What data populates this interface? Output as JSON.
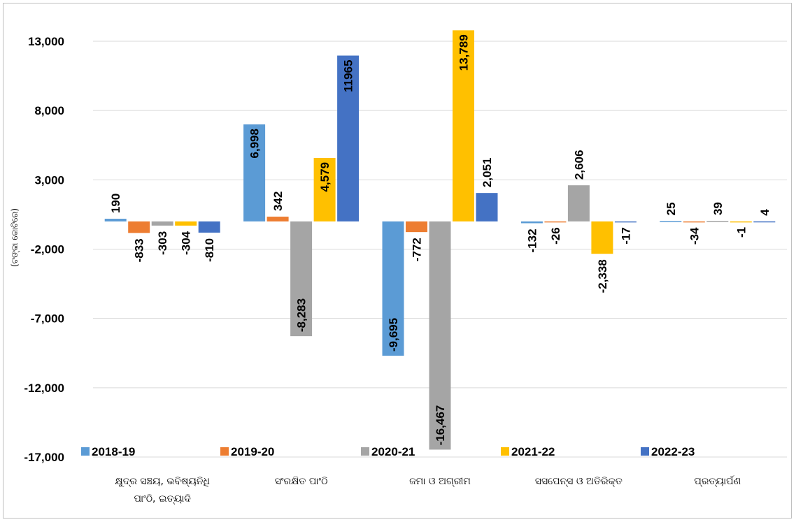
{
  "chart_data": {
    "type": "bar",
    "ylabel": "(ଟଙ୍କା କୋଟିରେ)",
    "ylim": [
      -17000,
      13000
    ],
    "yticks": [
      "13,000",
      "8,000",
      "3,000",
      "-2,000",
      "-7,000",
      "-12,000",
      "-17,000"
    ],
    "ytick_values": [
      13000,
      8000,
      3000,
      -2000,
      -7000,
      -12000,
      -17000
    ],
    "grid": true,
    "legend_position": "bottom-inside",
    "categories": [
      [
        "କ୍ଷୁଦ୍ର ସଞ୍ଚୟ, ଭବିଷ୍ୟନିଧି",
        "ପାଂଠି, ଇତ୍ୟାଦି"
      ],
      [
        "ସଂରକ୍ଷିତ ପାଂଠି"
      ],
      [
        "ଜମା ଓ ଅଗ୍ରୀମ"
      ],
      [
        "ସସପେନ୍ସ ଓ ଅତିରିକ୍ତ"
      ],
      [
        "ପ୍ରତ୍ୟାର୍ପଣ"
      ]
    ],
    "series": [
      {
        "name": "2018-19",
        "color": "#5b9bd5",
        "values": [
          190,
          6998,
          -9695,
          -132,
          25
        ],
        "labels": [
          "190",
          "6,998",
          "-9,695",
          "-132",
          "25"
        ]
      },
      {
        "name": "2019-20",
        "color": "#ed7d31",
        "values": [
          -833,
          342,
          -772,
          -26,
          -34
        ],
        "labels": [
          "-833",
          "342",
          "-772",
          "-26",
          "-34"
        ]
      },
      {
        "name": "2020-21",
        "color": "#a5a5a5",
        "values": [
          -303,
          -8283,
          -16467,
          2606,
          39
        ],
        "labels": [
          "-303",
          "-8,283",
          "-16,467",
          "2,606",
          "39"
        ]
      },
      {
        "name": "2021-22",
        "color": "#ffc000",
        "values": [
          -304,
          4579,
          13789,
          -2338,
          -1
        ],
        "labels": [
          "-304",
          "4,579",
          "13,789",
          "-2,338",
          "-1"
        ]
      },
      {
        "name": "2022-23",
        "color": "#4472c4",
        "values": [
          -810,
          11965,
          2051,
          -17,
          4
        ],
        "labels": [
          "-810",
          "11965",
          "2,051",
          "-17",
          "4"
        ]
      }
    ]
  }
}
